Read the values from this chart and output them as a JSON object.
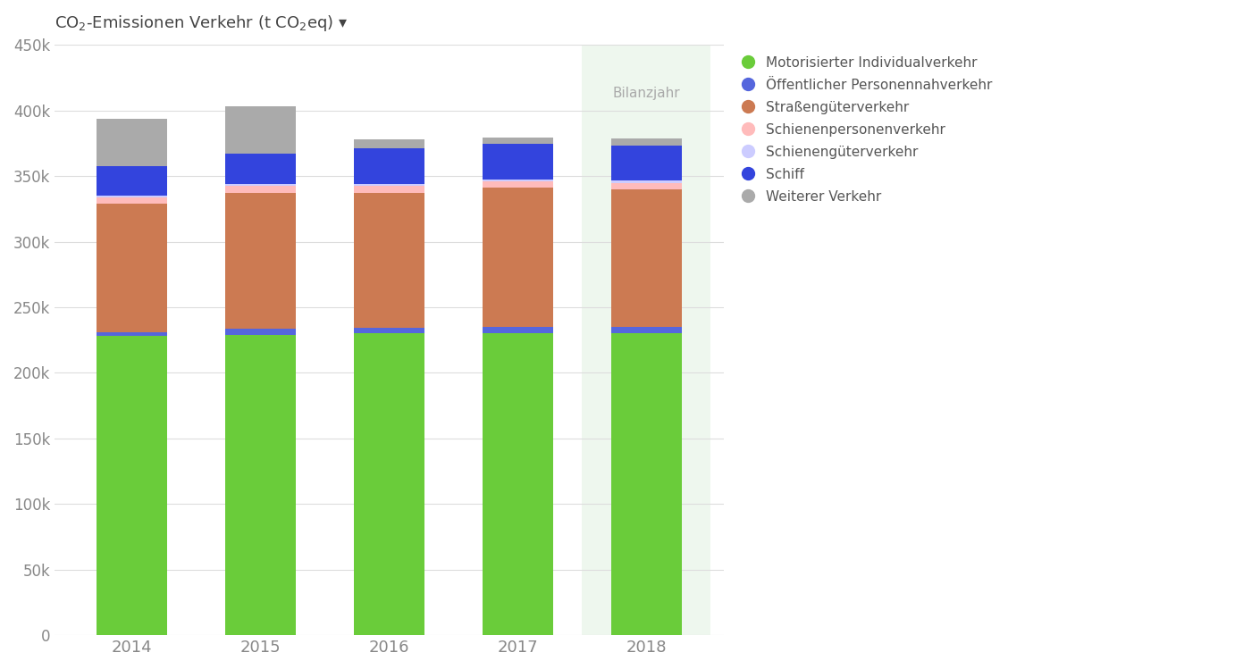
{
  "years": [
    "2014",
    "2015",
    "2016",
    "2017",
    "2018"
  ],
  "categories": [
    "Motorisierter Individualverkehr",
    "Öffentlicher Personennahverkehr",
    "Straßengüterverkehr",
    "Schienenpersonenverkehr",
    "Schienengüterverkehr",
    "Schiff",
    "Weiterer Verkehr"
  ],
  "colors": [
    "#6acc3a",
    "#5566dd",
    "#cc7a52",
    "#ffbbbb",
    "#ccccff",
    "#3344dd",
    "#aaaaaa"
  ],
  "values": {
    "Motorisierter Individualverkehr": [
      228000,
      229000,
      230000,
      230000,
      230000
    ],
    "Öffentlicher Personennahverkehr": [
      3000,
      4500,
      4500,
      5000,
      5000
    ],
    "Straßengüterverkehr": [
      98000,
      104000,
      103000,
      106000,
      105000
    ],
    "Schienenpersonenverkehr": [
      5000,
      5000,
      5000,
      5000,
      5000
    ],
    "Schienengüterverkehr": [
      1500,
      1500,
      1500,
      1500,
      1500
    ],
    "Schiff": [
      22000,
      23500,
      27000,
      27000,
      27000
    ],
    "Weiterer Verkehr": [
      36000,
      36000,
      7000,
      5000,
      5000
    ]
  },
  "title_main": "CO",
  "title_sub2": "2",
  "title_rest": "-Emissionen Verkehr (t CO",
  "title_sub2b": "2",
  "title_end": "eq) ▾",
  "ylabel": "",
  "ylim": [
    0,
    450000
  ],
  "yticks": [
    0,
    50000,
    100000,
    150000,
    200000,
    250000,
    300000,
    350000,
    400000,
    450000
  ],
  "ytick_labels": [
    "0",
    "50k",
    "100k",
    "150k",
    "200k",
    "250k",
    "300k",
    "350k",
    "400k",
    "450k"
  ],
  "highlight_year": "2018",
  "highlight_label": "Bilanzjahr",
  "background_color": "#ffffff",
  "highlight_bg": "#eef7ee",
  "grid_color": "#dddddd",
  "title_color": "#444444",
  "tick_color": "#888888",
  "bar_width": 0.55
}
